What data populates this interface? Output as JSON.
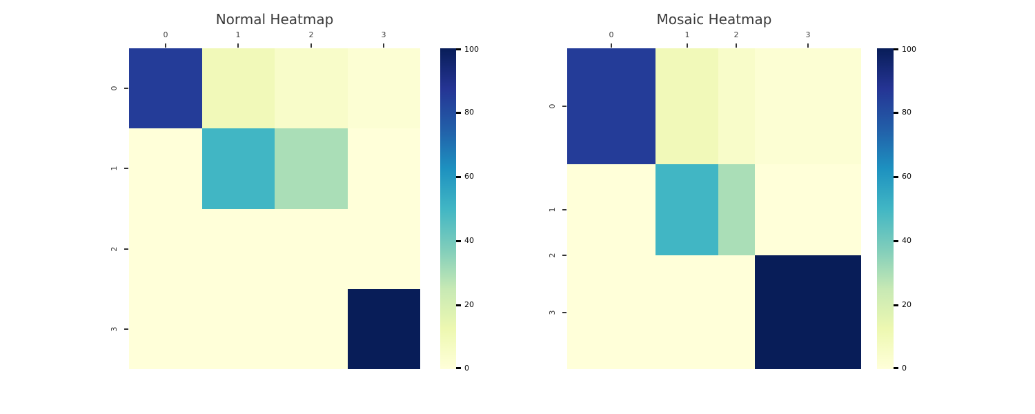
{
  "figure": {
    "background": "#ffffff",
    "text_color": "#3a3a3a"
  },
  "colormap": {
    "name": "YlGnBu",
    "min": 0,
    "max": 100,
    "stops": [
      {
        "value": 0,
        "color": "#ffffd9"
      },
      {
        "value": 12.5,
        "color": "#edf8b1"
      },
      {
        "value": 25,
        "color": "#c7e9b4"
      },
      {
        "value": 37.5,
        "color": "#7fcdbb"
      },
      {
        "value": 50,
        "color": "#41b6c4"
      },
      {
        "value": 62.5,
        "color": "#1d91c0"
      },
      {
        "value": 75,
        "color": "#225ea8"
      },
      {
        "value": 87.5,
        "color": "#253494"
      },
      {
        "value": 100,
        "color": "#081d58"
      }
    ]
  },
  "chart_data": [
    {
      "type": "heatmap",
      "variant": "uniform",
      "title": "Normal Heatmap",
      "x_tick_labels": [
        "0",
        "1",
        "2",
        "3"
      ],
      "y_tick_labels": [
        "0",
        "1",
        "2",
        "3"
      ],
      "x_axis_position": "top",
      "y_tick_rotation": -90,
      "matrix": [
        [
          85,
          10,
          5,
          2
        ],
        [
          0,
          50,
          30,
          0
        ],
        [
          0,
          0,
          0,
          0
        ],
        [
          0,
          0,
          0,
          100
        ]
      ],
      "colorbar": {
        "position": "right",
        "min": 0,
        "max": 100,
        "ticks": [
          0,
          20,
          40,
          60,
          80,
          100
        ]
      }
    },
    {
      "type": "heatmap",
      "variant": "mosaic",
      "title": "Mosaic Heatmap",
      "x_tick_labels": [
        "0",
        "1",
        "2",
        "3"
      ],
      "y_tick_labels": [
        "0",
        "1",
        "2",
        "3"
      ],
      "x_axis_position": "top",
      "y_tick_rotation": -90,
      "cell_sizing": "rows and columns proportional to marginal sums",
      "matrix": [
        [
          85,
          10,
          5,
          2
        ],
        [
          0,
          50,
          30,
          0
        ],
        [
          0,
          0,
          0,
          0
        ],
        [
          0,
          0,
          0,
          100
        ]
      ],
      "row_fractions": [
        0.3617,
        0.2837,
        0,
        0.3546
      ],
      "col_fractions": [
        0.3014,
        0.2128,
        0.1241,
        0.3617
      ],
      "colorbar": {
        "position": "right",
        "min": 0,
        "max": 100,
        "ticks": [
          0,
          20,
          40,
          60,
          80,
          100
        ]
      }
    }
  ]
}
